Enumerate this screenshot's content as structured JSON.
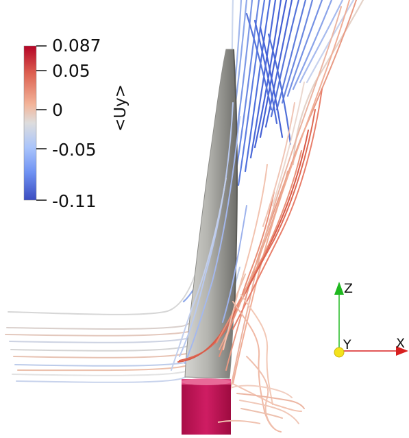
{
  "scene": {
    "background": "#ffffff",
    "description_colors": {
      "blade": "#a7a7a2",
      "tower": "#c4155a",
      "axis_x": "#d81f1f",
      "axis_z": "#1fb81f",
      "axis_y_dot": "#f4e21b"
    }
  },
  "colorbar": {
    "title": "<Uy>",
    "max_label": "0.087",
    "tick1_label": "0.05",
    "tick2_label": "0",
    "tick3_label": "-0.05",
    "min_label": "-0.11",
    "colors": [
      "#b40426",
      "#dd6151",
      "#f3b59a",
      "#dddddd",
      "#a9c4fb",
      "#6f92f3",
      "#3b4cc0"
    ]
  },
  "axes_triad": {
    "x_label": "X",
    "y_label": "Y",
    "z_label": "Z"
  }
}
